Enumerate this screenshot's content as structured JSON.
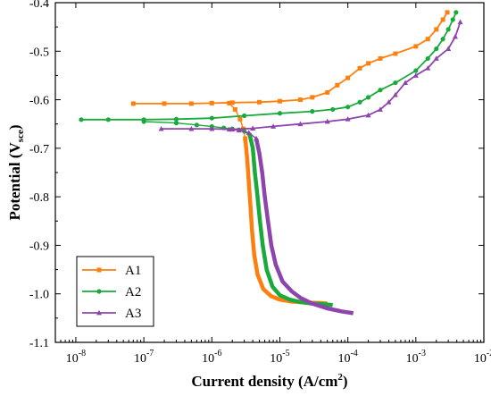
{
  "chart_data": {
    "type": "line",
    "xlabel": "Current density (A/cm",
    "xlabel_sup": "2",
    "xlabel_end": ")",
    "ylabel": "Potential (V",
    "ylabel_sub": "sce",
    "ylabel_end": ")",
    "x_scale": "log",
    "xlim": [
      5e-09,
      0.01
    ],
    "ylim": [
      -1.1,
      -0.4
    ],
    "x_ticks": [
      {
        "value": 1e-08,
        "base": "10",
        "exp": "-8"
      },
      {
        "value": 1e-07,
        "base": "10",
        "exp": "-7"
      },
      {
        "value": 1e-06,
        "base": "10",
        "exp": "-6"
      },
      {
        "value": 1e-05,
        "base": "10",
        "exp": "-5"
      },
      {
        "value": 0.0001,
        "base": "10",
        "exp": "-4"
      },
      {
        "value": 0.001,
        "base": "10",
        "exp": "-3"
      },
      {
        "value": 0.01,
        "base": "10",
        "exp": "-2"
      }
    ],
    "y_ticks": [
      {
        "value": -0.4,
        "label": "-0.4"
      },
      {
        "value": -0.5,
        "label": "-0.5"
      },
      {
        "value": -0.6,
        "label": "-0.6"
      },
      {
        "value": -0.7,
        "label": "-0.7"
      },
      {
        "value": -0.8,
        "label": "-0.8"
      },
      {
        "value": -0.9,
        "label": "-0.9"
      },
      {
        "value": -1.0,
        "label": "-1.0"
      },
      {
        "value": -1.1,
        "label": "-1.1"
      }
    ],
    "legend_position": "bottom-left",
    "series": [
      {
        "name": "A1",
        "color": "#ff7f0e",
        "marker": "square",
        "anodic": [
          [
            7e-08,
            -0.608
          ],
          [
            2e-07,
            -0.608
          ],
          [
            5e-07,
            -0.608
          ],
          [
            1e-06,
            -0.607
          ],
          [
            2e-06,
            -0.606
          ],
          [
            5e-06,
            -0.605
          ],
          [
            1e-05,
            -0.603
          ],
          [
            2e-05,
            -0.6
          ],
          [
            3e-05,
            -0.595
          ],
          [
            5e-05,
            -0.585
          ],
          [
            7e-05,
            -0.57
          ],
          [
            0.0001,
            -0.555
          ],
          [
            0.00015,
            -0.535
          ],
          [
            0.0002,
            -0.525
          ],
          [
            0.0003,
            -0.515
          ],
          [
            0.0005,
            -0.505
          ],
          [
            0.001,
            -0.49
          ],
          [
            0.0015,
            -0.475
          ],
          [
            0.002,
            -0.455
          ],
          [
            0.0025,
            -0.435
          ],
          [
            0.0029,
            -0.42
          ]
        ],
        "transition": [
          [
            1.8e-06,
            -0.607
          ],
          [
            2.2e-06,
            -0.62
          ],
          [
            2.6e-06,
            -0.64
          ],
          [
            2.9e-06,
            -0.66
          ],
          [
            3.1e-06,
            -0.68
          ]
        ],
        "cathodic": [
          [
            3.1e-06,
            -0.68
          ],
          [
            3.3e-06,
            -0.72
          ],
          [
            3.5e-06,
            -0.77
          ],
          [
            3.7e-06,
            -0.82
          ],
          [
            3.9e-06,
            -0.87
          ],
          [
            4.2e-06,
            -0.92
          ],
          [
            4.7e-06,
            -0.96
          ],
          [
            5.7e-06,
            -0.99
          ],
          [
            7.5e-06,
            -1.005
          ],
          [
            1e-05,
            -1.012
          ],
          [
            1.5e-05,
            -1.016
          ],
          [
            2.5e-05,
            -1.018
          ],
          [
            4e-05,
            -1.019
          ],
          [
            5e-05,
            -1.02
          ]
        ]
      },
      {
        "name": "A2",
        "color": "#1aaa3c",
        "marker": "circle",
        "anodic": [
          [
            1.2e-08,
            -0.641
          ],
          [
            3e-08,
            -0.641
          ],
          [
            1e-07,
            -0.641
          ],
          [
            3e-07,
            -0.64
          ],
          [
            1e-06,
            -0.638
          ],
          [
            3e-06,
            -0.633
          ],
          [
            1e-05,
            -0.628
          ],
          [
            3e-05,
            -0.624
          ],
          [
            6e-05,
            -0.62
          ],
          [
            0.0001,
            -0.615
          ],
          [
            0.00015,
            -0.605
          ],
          [
            0.0002,
            -0.595
          ],
          [
            0.0003,
            -0.58
          ],
          [
            0.0005,
            -0.565
          ],
          [
            0.001,
            -0.54
          ],
          [
            0.0015,
            -0.515
          ],
          [
            0.002,
            -0.495
          ],
          [
            0.0025,
            -0.475
          ],
          [
            0.003,
            -0.455
          ],
          [
            0.0035,
            -0.435
          ],
          [
            0.0039,
            -0.42
          ]
        ],
        "transition": [
          [
            1e-07,
            -0.645
          ],
          [
            3e-07,
            -0.648
          ],
          [
            6e-07,
            -0.652
          ],
          [
            1e-06,
            -0.655
          ],
          [
            1.5e-06,
            -0.658
          ],
          [
            2e-06,
            -0.66
          ],
          [
            2.5e-06,
            -0.662
          ],
          [
            3e-06,
            -0.665
          ],
          [
            3.6e-06,
            -0.672
          ]
        ],
        "cathodic": [
          [
            3.6e-06,
            -0.672
          ],
          [
            4e-06,
            -0.7
          ],
          [
            4.3e-06,
            -0.75
          ],
          [
            4.7e-06,
            -0.8
          ],
          [
            5.1e-06,
            -0.85
          ],
          [
            5.6e-06,
            -0.9
          ],
          [
            6.4e-06,
            -0.95
          ],
          [
            7.8e-06,
            -0.985
          ],
          [
            1e-05,
            -1.003
          ],
          [
            1.4e-05,
            -1.012
          ],
          [
            2e-05,
            -1.017
          ],
          [
            3e-05,
            -1.02
          ],
          [
            4e-05,
            -1.021
          ],
          [
            6e-05,
            -1.023
          ]
        ]
      },
      {
        "name": "A3",
        "color": "#8e44ad",
        "marker": "triangle",
        "anodic": [
          [
            1.8e-07,
            -0.66
          ],
          [
            5e-07,
            -0.66
          ],
          [
            1e-06,
            -0.66
          ],
          [
            2e-06,
            -0.661
          ],
          [
            4e-06,
            -0.659
          ],
          [
            8e-06,
            -0.655
          ],
          [
            2e-05,
            -0.65
          ],
          [
            5e-05,
            -0.645
          ],
          [
            0.0001,
            -0.64
          ],
          [
            0.0002,
            -0.632
          ],
          [
            0.0003,
            -0.62
          ],
          [
            0.0004,
            -0.605
          ],
          [
            0.0005,
            -0.59
          ],
          [
            0.0007,
            -0.565
          ],
          [
            0.001,
            -0.55
          ],
          [
            0.0015,
            -0.535
          ],
          [
            0.002,
            -0.515
          ],
          [
            0.003,
            -0.495
          ],
          [
            0.0038,
            -0.47
          ],
          [
            0.0045,
            -0.44
          ]
        ],
        "transition": [
          [
            1.8e-06,
            -0.661
          ],
          [
            2.5e-06,
            -0.663
          ],
          [
            3.5e-06,
            -0.668
          ],
          [
            4.5e-06,
            -0.68
          ]
        ],
        "cathodic": [
          [
            4.5e-06,
            -0.68
          ],
          [
            5e-06,
            -0.71
          ],
          [
            5.5e-06,
            -0.75
          ],
          [
            6e-06,
            -0.8
          ],
          [
            6.7e-06,
            -0.85
          ],
          [
            7.5e-06,
            -0.9
          ],
          [
            8.7e-06,
            -0.94
          ],
          [
            1.1e-05,
            -0.975
          ],
          [
            1.5e-05,
            -0.995
          ],
          [
            2e-05,
            -1.008
          ],
          [
            3e-05,
            -1.02
          ],
          [
            5e-05,
            -1.03
          ],
          [
            8e-05,
            -1.036
          ],
          [
            0.00012,
            -1.04
          ]
        ]
      }
    ]
  }
}
